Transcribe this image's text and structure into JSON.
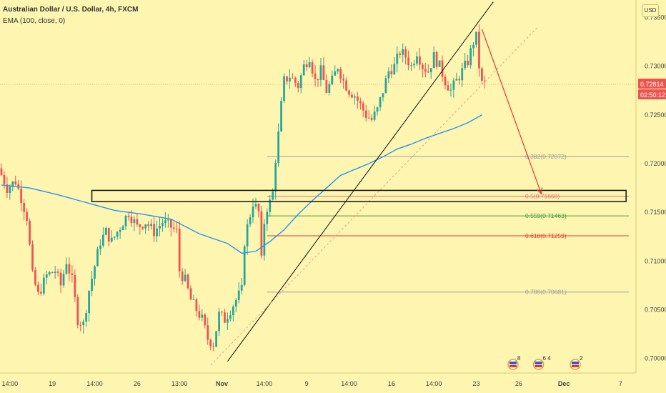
{
  "header": {
    "title": "Australian Dollar / U.S. Dollar, 4h, FXCM",
    "indicator": "EMA (100, close, 0)",
    "currency_button": "USD"
  },
  "colors": {
    "background": "#fdf5b0",
    "up": "#26a69a",
    "down": "#ef5350",
    "ema": "#2196f3",
    "arrow": "#e53935",
    "price_label": "#ef5350"
  },
  "chart_data": {
    "type": "candlestick",
    "symbol": "AUDUSD",
    "timeframe": "4h",
    "ylim": [
      0.6985,
      0.7368
    ],
    "y_ticks": [
      "0.73500",
      "0.73000",
      "0.72500",
      "0.72000",
      "0.71500",
      "0.71000",
      "0.70500",
      "0.70000"
    ],
    "y_tick_values": [
      0.735,
      0.73,
      0.725,
      0.72,
      0.715,
      0.71,
      0.705,
      0.7
    ],
    "x_ticks": [
      "14:00",
      "19",
      "14:00",
      "26",
      "13:00",
      "Nov",
      "14:00",
      "9",
      "14:00",
      "16",
      "14:00",
      "23",
      "26",
      "Dec",
      "7"
    ],
    "x_tick_bars": [
      3,
      18,
      33,
      48,
      63,
      78,
      93,
      108,
      123,
      138,
      153,
      168,
      183,
      199,
      219
    ],
    "visible_bars": 225,
    "price_axis": {
      "last_price": "0.72814",
      "countdown": "02:50:12",
      "last_value": 0.72814
    },
    "fibonacci": [
      {
        "label": "0.382(0.72072)",
        "value": 0.72072,
        "color": "#9e9e9e"
      },
      {
        "label": "0.5(0.71666)",
        "value": 0.71666,
        "color": "#e57373"
      },
      {
        "label": "0.559(0.71463)",
        "value": 0.71463,
        "color": "#43a047"
      },
      {
        "label": "0.618(0.71259)",
        "value": 0.71259,
        "color": "#e53935"
      },
      {
        "label": "0.786(0.70681)",
        "value": 0.70681,
        "color": "#9e9e9e"
      }
    ],
    "event_markers": [
      "8",
      "6",
      "4",
      "2"
    ],
    "trend_line": {
      "x": [
        80,
        174
      ],
      "y": [
        0.6997,
        0.7366
      ]
    },
    "dashed_trend_line": {
      "x": [
        74,
        190
      ],
      "y": [
        0.6993,
        0.7341
      ]
    },
    "zone": {
      "x": [
        32,
        221
      ],
      "y": [
        0.7161,
        0.71725
      ]
    },
    "projection_arrow": {
      "x": [
        170,
        191
      ],
      "y": [
        0.7338,
        0.7169
      ]
    },
    "ema_path": [
      [
        0,
        0.7178
      ],
      [
        10,
        0.7175
      ],
      [
        20,
        0.7168
      ],
      [
        30,
        0.716
      ],
      [
        40,
        0.7152
      ],
      [
        50,
        0.7148
      ],
      [
        60,
        0.7143
      ],
      [
        70,
        0.7128
      ],
      [
        80,
        0.7118
      ],
      [
        85,
        0.7108
      ],
      [
        90,
        0.711
      ],
      [
        95,
        0.712
      ],
      [
        100,
        0.7132
      ],
      [
        105,
        0.7148
      ],
      [
        110,
        0.7162
      ],
      [
        115,
        0.7175
      ],
      [
        120,
        0.7188
      ],
      [
        125,
        0.7194
      ],
      [
        130,
        0.72
      ],
      [
        135,
        0.7207
      ],
      [
        140,
        0.7215
      ],
      [
        145,
        0.722
      ],
      [
        150,
        0.7226
      ],
      [
        155,
        0.7231
      ],
      [
        160,
        0.7236
      ],
      [
        165,
        0.7242
      ],
      [
        170,
        0.725
      ]
    ],
    "price_path": [
      [
        0,
        0.7195
      ],
      [
        3,
        0.7175
      ],
      [
        6,
        0.7182
      ],
      [
        8,
        0.7165
      ],
      [
        10,
        0.7145
      ],
      [
        12,
        0.7085
      ],
      [
        14,
        0.7065
      ],
      [
        17,
        0.7085
      ],
      [
        20,
        0.709
      ],
      [
        22,
        0.7075
      ],
      [
        24,
        0.71
      ],
      [
        26,
        0.708
      ],
      [
        28,
        0.704
      ],
      [
        30,
        0.7035
      ],
      [
        32,
        0.707
      ],
      [
        34,
        0.7095
      ],
      [
        36,
        0.712
      ],
      [
        38,
        0.713
      ],
      [
        40,
        0.712
      ],
      [
        43,
        0.7135
      ],
      [
        46,
        0.715
      ],
      [
        49,
        0.7135
      ],
      [
        52,
        0.714
      ],
      [
        55,
        0.713
      ],
      [
        58,
        0.714
      ],
      [
        61,
        0.7135
      ],
      [
        63,
        0.713
      ],
      [
        64,
        0.709
      ],
      [
        66,
        0.708
      ],
      [
        68,
        0.706
      ],
      [
        70,
        0.705
      ],
      [
        72,
        0.704
      ],
      [
        74,
        0.702
      ],
      [
        76,
        0.7015
      ],
      [
        78,
        0.7045
      ],
      [
        80,
        0.704
      ],
      [
        82,
        0.705
      ],
      [
        84,
        0.706
      ],
      [
        86,
        0.707
      ],
      [
        87,
        0.712
      ],
      [
        88,
        0.7135
      ],
      [
        90,
        0.716
      ],
      [
        92,
        0.715
      ],
      [
        93,
        0.71
      ],
      [
        94,
        0.714
      ],
      [
        95,
        0.7155
      ],
      [
        96,
        0.716
      ],
      [
        97,
        0.717
      ],
      [
        98,
        0.7205
      ],
      [
        99,
        0.723
      ],
      [
        100,
        0.726
      ],
      [
        101,
        0.7285
      ],
      [
        103,
        0.729
      ],
      [
        106,
        0.728
      ],
      [
        108,
        0.73
      ],
      [
        110,
        0.731
      ],
      [
        112,
        0.7285
      ],
      [
        114,
        0.7295
      ],
      [
        116,
        0.7275
      ],
      [
        118,
        0.7285
      ],
      [
        120,
        0.73
      ],
      [
        122,
        0.7285
      ],
      [
        124,
        0.7275
      ],
      [
        126,
        0.727
      ],
      [
        128,
        0.726
      ],
      [
        130,
        0.725
      ],
      [
        132,
        0.7245
      ],
      [
        134,
        0.7255
      ],
      [
        136,
        0.7275
      ],
      [
        138,
        0.7295
      ],
      [
        140,
        0.73
      ],
      [
        142,
        0.7315
      ],
      [
        144,
        0.731
      ],
      [
        146,
        0.73
      ],
      [
        148,
        0.7315
      ],
      [
        150,
        0.73
      ],
      [
        152,
        0.7295
      ],
      [
        154,
        0.731
      ],
      [
        156,
        0.73
      ],
      [
        158,
        0.7285
      ],
      [
        160,
        0.7275
      ],
      [
        162,
        0.7285
      ],
      [
        164,
        0.7295
      ],
      [
        166,
        0.7305
      ],
      [
        168,
        0.7325
      ],
      [
        169,
        0.733
      ],
      [
        170,
        0.73
      ],
      [
        171,
        0.7282
      ]
    ]
  }
}
